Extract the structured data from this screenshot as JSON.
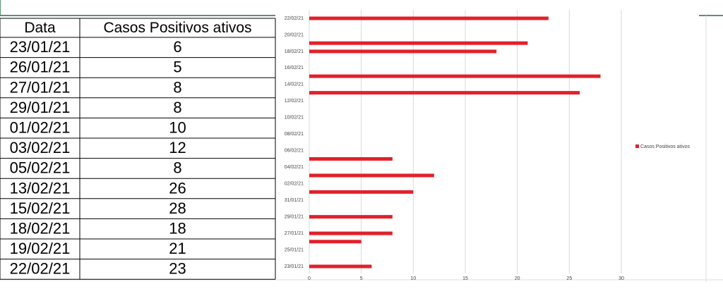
{
  "table": {
    "header": [
      "Data",
      "Casos Positivos ativos"
    ],
    "rows": [
      [
        "23/01/21",
        6
      ],
      [
        "26/01/21",
        5
      ],
      [
        "27/01/21",
        8
      ],
      [
        "29/01/21",
        8
      ],
      [
        "01/02/21",
        10
      ],
      [
        "03/02/21",
        12
      ],
      [
        "05/02/21",
        8
      ],
      [
        "13/02/21",
        26
      ],
      [
        "15/02/21",
        28
      ],
      [
        "18/02/21",
        18
      ],
      [
        "19/02/21",
        21
      ],
      [
        "22/02/21",
        23
      ]
    ]
  },
  "chart_data": {
    "type": "bar",
    "orientation": "horizontal",
    "categories": [
      "23/01/21",
      "26/01/21",
      "27/01/21",
      "29/01/21",
      "01/02/21",
      "03/02/21",
      "05/02/21",
      "13/02/21",
      "15/02/21",
      "18/02/21",
      "19/02/21",
      "22/02/21"
    ],
    "series": [
      {
        "name": "Casos Positivos ativos",
        "color": "#e3202a",
        "values": [
          6,
          5,
          8,
          8,
          10,
          12,
          8,
          26,
          28,
          18,
          21,
          23
        ]
      }
    ],
    "xlim": [
      0,
      30
    ],
    "xticks": [
      0,
      5,
      10,
      15,
      20,
      25,
      30
    ],
    "ylim": [
      "23/01/21",
      "22/02/21"
    ],
    "yticks": [
      "23/01/21",
      "25/01/21",
      "27/01/21",
      "29/01/21",
      "31/01/21",
      "02/02/21",
      "04/02/21",
      "06/02/21",
      "08/02/21",
      "10/02/21",
      "12/02/21",
      "14/02/21",
      "16/02/21",
      "18/02/21",
      "20/02/21",
      "22/02/21"
    ],
    "grid": true,
    "legend": "right"
  }
}
